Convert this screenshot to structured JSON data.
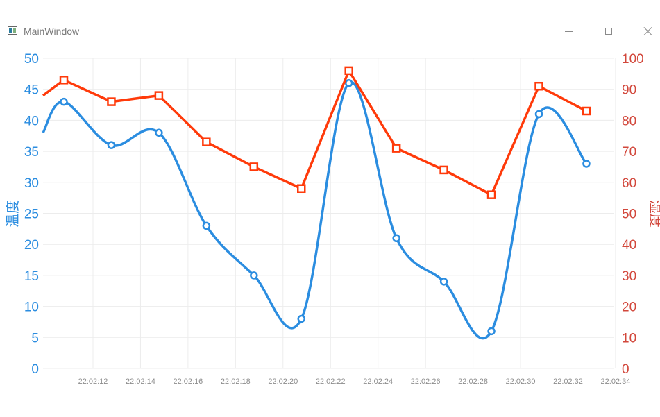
{
  "window": {
    "title": "MainWindow",
    "icon": "app-window-icon",
    "buttons": [
      "minimize-icon",
      "maximize-icon",
      "close-icon"
    ]
  },
  "chart_data": {
    "type": "line",
    "title": "",
    "x": [
      "22:02:11",
      "22:02:13",
      "22:02:15",
      "22:02:17",
      "22:02:19",
      "22:02:21",
      "22:02:23",
      "22:02:25",
      "22:02:27",
      "22:02:29",
      "22:02:31",
      "22:02:33"
    ],
    "x_ticks": [
      "22:02:12",
      "22:02:14",
      "22:02:16",
      "22:02:18",
      "22:02:20",
      "22:02:22",
      "22:02:24",
      "22:02:26",
      "22:02:28",
      "22:02:30",
      "22:02:32",
      "22:02:34"
    ],
    "y_left": {
      "label": "温度",
      "range": [
        0,
        50
      ],
      "ticks": [
        "0",
        "5",
        "10",
        "15",
        "20",
        "25",
        "30",
        "35",
        "40",
        "45",
        "50"
      ],
      "color": "#2b8de0"
    },
    "y_right": {
      "label": "湿度",
      "range": [
        0,
        100
      ],
      "ticks": [
        "0",
        "10",
        "20",
        "30",
        "40",
        "50",
        "60",
        "70",
        "80",
        "90",
        "100"
      ],
      "color": "#d2473b"
    },
    "series": [
      {
        "name": "温度",
        "axis": "left",
        "style": "smooth-line",
        "marker": "circle",
        "color": "#2b8de0",
        "values": [
          43,
          36,
          38,
          23,
          15,
          8,
          46,
          21,
          14,
          6,
          41,
          33
        ],
        "left_edge_value": 38
      },
      {
        "name": "湿度",
        "axis": "right",
        "style": "straight-line",
        "marker": "square",
        "color": "#ff3a0a",
        "values": [
          93,
          86,
          88,
          73,
          65,
          58,
          96,
          71,
          64,
          56,
          91,
          83
        ],
        "left_edge_value": 88
      }
    ],
    "grid": true,
    "legend": "none"
  }
}
